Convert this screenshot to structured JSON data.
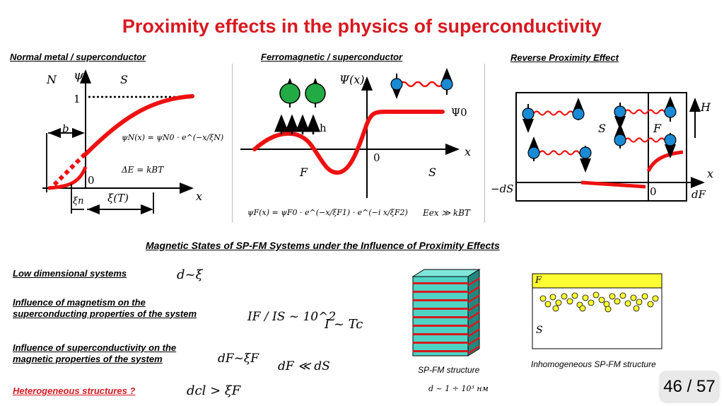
{
  "title": "Proximity effects in the physics of superconductivity",
  "panel_nm": {
    "heading": "Normal metal / superconductor",
    "n": "N",
    "psi": "ψ",
    "s": "S",
    "one": "1",
    "b": "b",
    "zero": "0",
    "x": "x",
    "formula": "ψN(x) = ψN0 · e^(−x/ξN)",
    "energy": "ΔE = kBT",
    "xi_n": "ξn",
    "xi_t": "ξ(T)"
  },
  "panel_fs": {
    "heading": "Ferromagnetic / superconductor",
    "psi": "Ψ(x)",
    "h": "h",
    "psi0": "Ψ0",
    "zero": "0",
    "x": "x",
    "f": "F",
    "s": "S",
    "formula": "ψF(x) = ψF0 · e^(−x/ξF1) · e^(−i x/ξF2)",
    "eex": "Eex ≫ kBT"
  },
  "panel_rev": {
    "heading": "Reverse Proximity Effect",
    "h": "H",
    "s": "S",
    "f": "F",
    "x": "x",
    "zero": "0",
    "ds": "−dS",
    "df": "dF"
  },
  "subheading": "Magnetic States of SP-FM Systems under the Influence of Proximity Effects",
  "items": {
    "low_dim": "Low dimensional systems",
    "low_dim_rel": "d~ξ",
    "magnetism": "Influence of magnetism on the superconducting properties of the system",
    "current_ratio": "IF / IS ~ 10^2",
    "current_tc": "I ~ Tc",
    "supercond": "Influence of superconductivity on the magnetic properties of the system",
    "df_xi": "dF~ξF",
    "df_ds": "dF ≪ dS",
    "hetero": "Heterogeneous structures ?",
    "dcl": "dcl > ξF"
  },
  "captions": {
    "stack": "SP-FM structure",
    "inhom": "Inhomogeneous SP-FM structure",
    "thickness": "d ~ 1 ÷ 10³ нм",
    "f": "F",
    "s": "S"
  },
  "pager": "46 / 57",
  "colors": {
    "accent_red": "#d71920",
    "sphere_green": "#22aa44",
    "spin_blue": "#1a8ad4",
    "layer_teal": "#4fd3c4",
    "layer_red": "#d71920",
    "film_yellow": "#ffff33"
  }
}
